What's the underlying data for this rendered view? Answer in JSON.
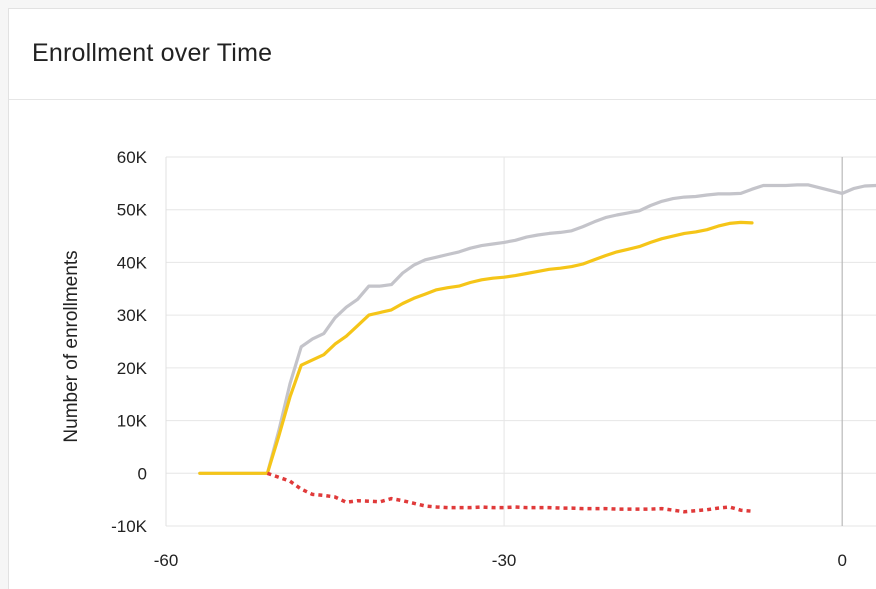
{
  "card": {
    "title": "Enrollment over Time"
  },
  "chart_data": {
    "type": "line",
    "title": "Enrollment over Time",
    "xlabel": "",
    "ylabel": "Number of enrollments",
    "xlim": [
      -60,
      3
    ],
    "ylim": [
      -10000,
      60000
    ],
    "x_ticks": [
      -60,
      -30,
      0
    ],
    "x_tick_labels": [
      "-60",
      "-30",
      "0"
    ],
    "y_ticks": [
      -10000,
      0,
      10000,
      20000,
      30000,
      40000,
      50000,
      60000
    ],
    "y_tick_labels": [
      "-10K",
      "0",
      "10K",
      "20K",
      "30K",
      "40K",
      "50K",
      "60K"
    ],
    "grid": true,
    "reference_line_x": 0,
    "series": [
      {
        "color": "#c4c4ca",
        "style": "solid",
        "points": [
          [
            -57,
            0
          ],
          [
            -51,
            0
          ],
          [
            -50,
            8000
          ],
          [
            -49,
            17000
          ],
          [
            -48,
            24000
          ],
          [
            -47,
            25500
          ],
          [
            -46,
            26500
          ],
          [
            -45,
            29500
          ],
          [
            -44,
            31500
          ],
          [
            -43,
            33000
          ],
          [
            -42,
            35500
          ],
          [
            -41,
            35500
          ],
          [
            -40,
            35800
          ],
          [
            -39,
            38000
          ],
          [
            -38,
            39500
          ],
          [
            -37,
            40500
          ],
          [
            -36,
            41000
          ],
          [
            -35,
            41500
          ],
          [
            -34,
            42000
          ],
          [
            -33,
            42700
          ],
          [
            -32,
            43200
          ],
          [
            -31,
            43500
          ],
          [
            -30,
            43800
          ],
          [
            -29,
            44200
          ],
          [
            -28,
            44800
          ],
          [
            -27,
            45200
          ],
          [
            -26,
            45500
          ],
          [
            -25,
            45700
          ],
          [
            -24,
            46000
          ],
          [
            -23,
            46800
          ],
          [
            -22,
            47700
          ],
          [
            -21,
            48500
          ],
          [
            -20,
            49000
          ],
          [
            -19,
            49400
          ],
          [
            -18,
            49800
          ],
          [
            -17,
            50800
          ],
          [
            -16,
            51600
          ],
          [
            -15,
            52100
          ],
          [
            -14,
            52400
          ],
          [
            -13,
            52500
          ],
          [
            -12,
            52800
          ],
          [
            -11,
            53000
          ],
          [
            -10,
            53000
          ],
          [
            -9,
            53100
          ],
          [
            -8,
            53900
          ],
          [
            -7,
            54600
          ],
          [
            -6,
            54600
          ],
          [
            -5,
            54600
          ],
          [
            -4,
            54700
          ],
          [
            -3,
            54700
          ],
          [
            0,
            53100
          ],
          [
            1,
            54000
          ],
          [
            2,
            54500
          ],
          [
            3,
            54600
          ]
        ]
      },
      {
        "color": "#f5c518",
        "style": "solid",
        "points": [
          [
            -57,
            0
          ],
          [
            -51,
            0
          ],
          [
            -50,
            7000
          ],
          [
            -49,
            14500
          ],
          [
            -48,
            20500
          ],
          [
            -47,
            21500
          ],
          [
            -46,
            22500
          ],
          [
            -45,
            24500
          ],
          [
            -44,
            26000
          ],
          [
            -43,
            28000
          ],
          [
            -42,
            30000
          ],
          [
            -41,
            30500
          ],
          [
            -40,
            31000
          ],
          [
            -39,
            32200
          ],
          [
            -38,
            33200
          ],
          [
            -37,
            34000
          ],
          [
            -36,
            34800
          ],
          [
            -35,
            35200
          ],
          [
            -34,
            35500
          ],
          [
            -33,
            36200
          ],
          [
            -32,
            36700
          ],
          [
            -31,
            37000
          ],
          [
            -30,
            37200
          ],
          [
            -29,
            37500
          ],
          [
            -28,
            37900
          ],
          [
            -27,
            38300
          ],
          [
            -26,
            38700
          ],
          [
            -25,
            38900
          ],
          [
            -24,
            39200
          ],
          [
            -23,
            39700
          ],
          [
            -22,
            40500
          ],
          [
            -21,
            41300
          ],
          [
            -20,
            42000
          ],
          [
            -19,
            42500
          ],
          [
            -18,
            43000
          ],
          [
            -17,
            43800
          ],
          [
            -16,
            44500
          ],
          [
            -15,
            45000
          ],
          [
            -14,
            45500
          ],
          [
            -13,
            45800
          ],
          [
            -12,
            46200
          ],
          [
            -11,
            46900
          ],
          [
            -10,
            47400
          ],
          [
            -9,
            47600
          ],
          [
            -8,
            47500
          ]
        ]
      },
      {
        "color": "#e03a3a",
        "style": "dotted",
        "points": [
          [
            -51,
            0
          ],
          [
            -49,
            -1500
          ],
          [
            -48,
            -3000
          ],
          [
            -47,
            -4000
          ],
          [
            -46,
            -4200
          ],
          [
            -45,
            -4500
          ],
          [
            -44,
            -5500
          ],
          [
            -43,
            -5200
          ],
          [
            -42,
            -5300
          ],
          [
            -41,
            -5400
          ],
          [
            -40,
            -4800
          ],
          [
            -39,
            -5200
          ],
          [
            -38,
            -5700
          ],
          [
            -37,
            -6200
          ],
          [
            -36,
            -6400
          ],
          [
            -35,
            -6500
          ],
          [
            -34,
            -6500
          ],
          [
            -33,
            -6500
          ],
          [
            -32,
            -6400
          ],
          [
            -31,
            -6500
          ],
          [
            -30,
            -6500
          ],
          [
            -29,
            -6400
          ],
          [
            -28,
            -6500
          ],
          [
            -27,
            -6500
          ],
          [
            -26,
            -6500
          ],
          [
            -25,
            -6600
          ],
          [
            -24,
            -6600
          ],
          [
            -23,
            -6700
          ],
          [
            -22,
            -6700
          ],
          [
            -21,
            -6700
          ],
          [
            -20,
            -6800
          ],
          [
            -19,
            -6800
          ],
          [
            -18,
            -6800
          ],
          [
            -17,
            -6800
          ],
          [
            -16,
            -6700
          ],
          [
            -15,
            -7000
          ],
          [
            -14,
            -7300
          ],
          [
            -13,
            -7100
          ],
          [
            -12,
            -6900
          ],
          [
            -11,
            -6600
          ],
          [
            -10,
            -6400
          ],
          [
            -9,
            -7000
          ],
          [
            -8,
            -7200
          ]
        ]
      }
    ]
  }
}
